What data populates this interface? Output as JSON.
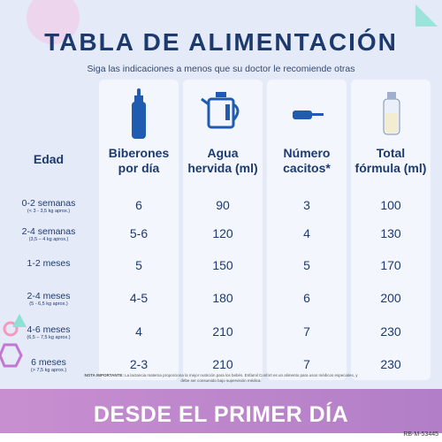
{
  "header": {
    "title": "TABLA DE ALIMENTACIÓN",
    "subtitle": "Siga las indicaciones a menos que su doctor le recomiende otras"
  },
  "table": {
    "columns": [
      "Edad",
      "Biberones por día",
      "Agua hervida (ml)",
      "Número cacitos*",
      "Total fórmula (ml)"
    ],
    "rows": [
      {
        "age": "0-2 semanas",
        "note": "(< 3 - 3,5 kg aprox.)",
        "cells": [
          "6",
          "90",
          "3",
          "100"
        ]
      },
      {
        "age": "2-4 semanas",
        "note": "(3,5 – 4 kg aprox.)",
        "cells": [
          "5-6",
          "120",
          "4",
          "130"
        ]
      },
      {
        "age": "1-2 meses",
        "note": null,
        "cells": [
          "5",
          "150",
          "5",
          "170"
        ]
      },
      {
        "age": "2-4 meses",
        "note": "(5 - 6,5 kg aprox.)",
        "cells": [
          "4-5",
          "180",
          "6",
          "200"
        ]
      },
      {
        "age": "4-6 meses",
        "note": "(6,5 – 7,5 kg aprox.)",
        "cells": [
          "4",
          "210",
          "7",
          "230"
        ]
      },
      {
        "age": "6 meses",
        "note": "(> 7,5 kg aprox.)",
        "cells": [
          "2-3",
          "210",
          "7",
          "230"
        ]
      }
    ]
  },
  "footnote": {
    "label": "NOTA IMPORTANTE:",
    "text": "La lactancia materna proporciona la mejor nutrición para los bebés. Enfamil Confort es un alimento para usos médicos especiales, y debe ser consumido bajo supervisión médica."
  },
  "banner": "DESDE EL PRIMER DÍA",
  "code": "RB-M-53445"
}
